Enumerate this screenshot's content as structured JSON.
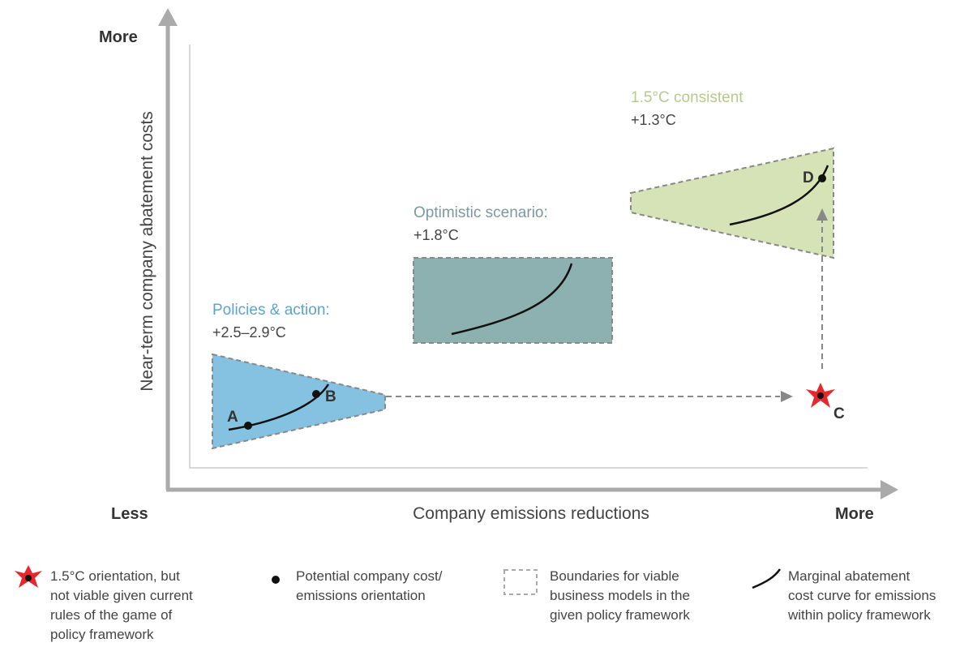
{
  "axes": {
    "y_label": "Near-term company abatement costs",
    "y_top": "More",
    "x_left": "Less",
    "x_label": "Company emissions reductions",
    "x_right": "More"
  },
  "regions": [
    {
      "title": "Policies & action:",
      "subtitle": "+2.5–2.9°C"
    },
    {
      "title": "Optimistic scenario:",
      "subtitle": "+1.8°C"
    },
    {
      "title": "1.5°C consistent",
      "subtitle": "+1.3°C"
    }
  ],
  "points": [
    "A",
    "B",
    "C",
    "D"
  ],
  "legend": [
    {
      "lines": [
        "1.5°C orientation, but",
        "not viable given current",
        "rules of the game of",
        "policy framework"
      ]
    },
    {
      "lines": [
        "Potential company cost/",
        "emissions orientation"
      ]
    },
    {
      "lines": [
        "Boundaries for viable",
        "business models in the",
        "given policy framework"
      ]
    },
    {
      "lines": [
        "Marginal abatement",
        "cost curve for emissions",
        "within policy framework"
      ]
    }
  ]
}
